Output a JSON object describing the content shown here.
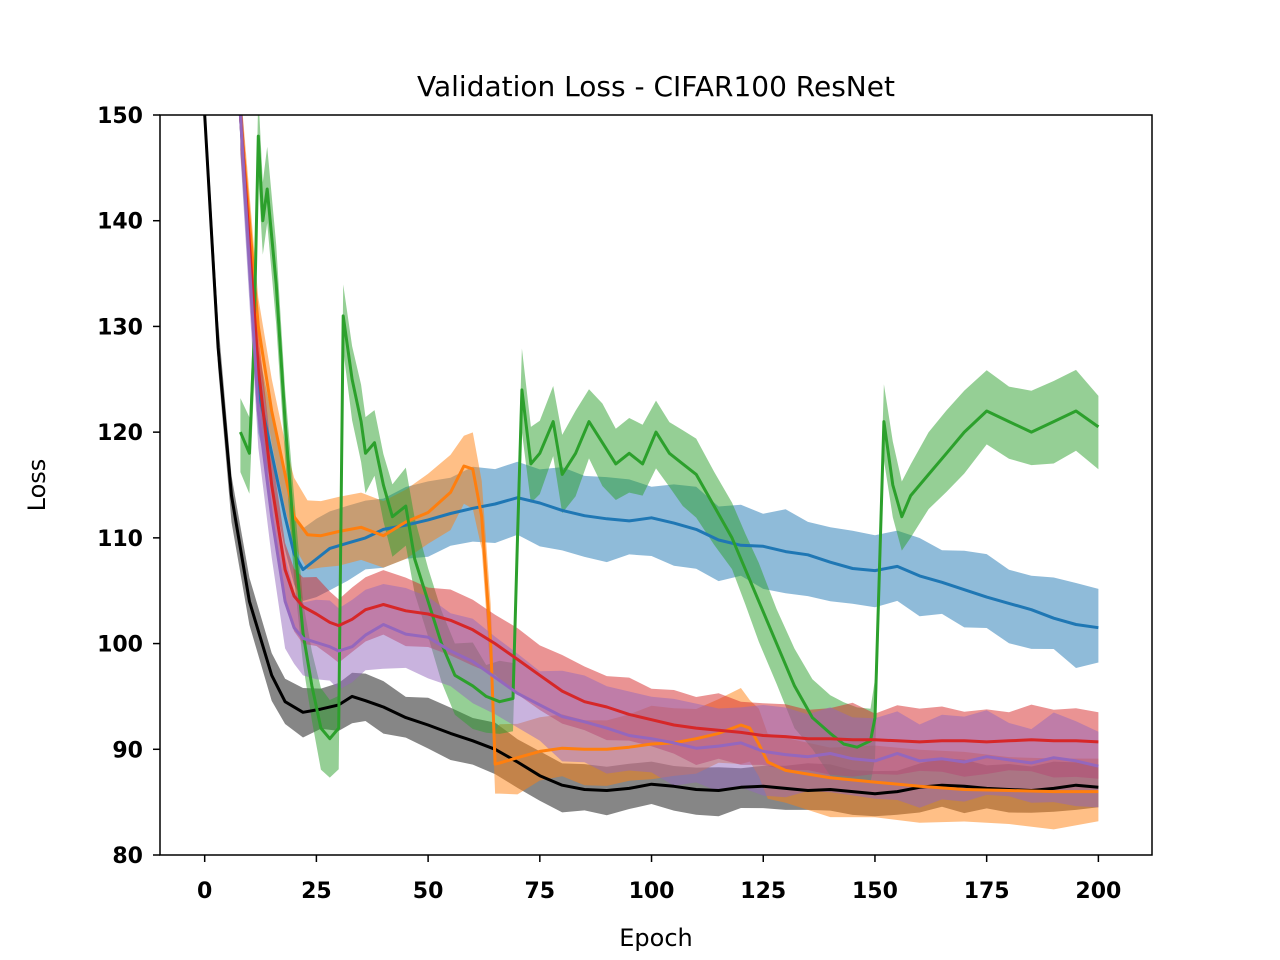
{
  "chart_data": {
    "type": "line",
    "title": "Validation Loss - CIFAR100 ResNet",
    "xlabel": "Epoch",
    "ylabel": "Loss",
    "xlim": [
      -10,
      212
    ],
    "ylim": [
      80,
      150
    ],
    "xticks": [
      0,
      25,
      50,
      75,
      100,
      125,
      150,
      175,
      200
    ],
    "yticks": [
      80,
      90,
      100,
      110,
      120,
      130,
      140,
      150
    ],
    "grid": false,
    "legend": "none",
    "series": [
      {
        "color": "#7f7f7f",
        "line_color": "#000000",
        "band": 2.2,
        "x": [
          0,
          3,
          6,
          10,
          15,
          18,
          22,
          26,
          30,
          33,
          36,
          40,
          45,
          50,
          55,
          60,
          65,
          70,
          75,
          80,
          85,
          90,
          95,
          100,
          105,
          110,
          115,
          120,
          125,
          130,
          135,
          140,
          145,
          150,
          155,
          160,
          165,
          170,
          175,
          180,
          185,
          190,
          195,
          200
        ],
        "y": [
          150,
          128,
          114,
          104,
          97,
          94.5,
          93.5,
          93.8,
          94.2,
          95,
          94.6,
          94,
          93,
          92.3,
          91.5,
          90.8,
          90,
          88.8,
          87.5,
          86.6,
          86.2,
          86.1,
          86.3,
          86.7,
          86.5,
          86.2,
          86.1,
          86.4,
          86.5,
          86.3,
          86.1,
          86.2,
          86.0,
          85.8,
          86.0,
          86.4,
          86.6,
          86.5,
          86.3,
          86.2,
          86.1,
          86.3,
          86.6,
          86.4
        ]
      },
      {
        "color": "#1f77b4",
        "band": 3.5,
        "x": [
          8,
          12,
          15,
          18,
          20,
          22,
          25,
          28,
          32,
          36,
          40,
          45,
          50,
          55,
          60,
          65,
          70,
          75,
          80,
          85,
          90,
          95,
          100,
          105,
          110,
          115,
          120,
          125,
          130,
          135,
          140,
          145,
          150,
          155,
          160,
          165,
          170,
          175,
          180,
          185,
          190,
          195,
          200
        ],
        "y": [
          150,
          124,
          118,
          112,
          108.5,
          107,
          108,
          109,
          109.5,
          110,
          110.8,
          111.2,
          111.7,
          112.3,
          112.8,
          113.2,
          113.8,
          113.3,
          112.6,
          112.1,
          111.8,
          111.6,
          111.9,
          111.4,
          110.8,
          109.8,
          109.3,
          109.2,
          108.7,
          108.4,
          107.7,
          107.1,
          106.9,
          107.3,
          106.4,
          105.8,
          105.1,
          104.4,
          103.8,
          103.2,
          102.4,
          101.8,
          101.5
        ]
      },
      {
        "color": "#ff7f0e",
        "band": 3.2,
        "x": [
          8,
          12,
          15,
          18,
          20,
          23,
          26,
          30,
          35,
          40,
          45,
          50,
          55,
          58,
          60,
          62,
          64,
          65,
          66,
          70,
          75,
          80,
          85,
          90,
          95,
          100,
          105,
          110,
          115,
          120,
          122,
          124,
          126,
          130,
          140,
          150,
          160,
          170,
          180,
          190,
          200
        ],
        "y": [
          150,
          130,
          122,
          116,
          112,
          110.3,
          110.2,
          110.6,
          111,
          110.2,
          111.5,
          112.4,
          114.3,
          116.8,
          116.5,
          112,
          100,
          88.6,
          88.7,
          89.2,
          89.8,
          90.1,
          90.0,
          90.0,
          90.2,
          90.5,
          90.6,
          91.0,
          91.5,
          92.3,
          92.0,
          90.5,
          88.8,
          88.0,
          87.3,
          86.9,
          86.5,
          86.2,
          86.1,
          86.0,
          86.0
        ]
      },
      {
        "color": "#2ca02c",
        "band": 3.5,
        "x": [
          8,
          10,
          11,
          12,
          13,
          14,
          16,
          18,
          20,
          22,
          24,
          26,
          28,
          30,
          31,
          33,
          35,
          36,
          38,
          40,
          42,
          45,
          47,
          50,
          53,
          56,
          60,
          63,
          66,
          69,
          70,
          71,
          73,
          75,
          78,
          80,
          83,
          86,
          89,
          92,
          95,
          98,
          101,
          104,
          107,
          110,
          114,
          118,
          121,
          124,
          128,
          132,
          136,
          140,
          143,
          146,
          149,
          150,
          152,
          154,
          156,
          158,
          162,
          166,
          170,
          175,
          180,
          185,
          190,
          195,
          200
        ],
        "y": [
          120,
          118,
          128,
          148,
          140,
          143,
          134,
          121,
          110,
          101,
          96,
          92,
          91,
          92,
          131,
          125,
          121,
          118,
          119,
          115,
          112,
          113,
          108,
          104,
          100,
          97,
          96,
          95,
          94.5,
          94.8,
          110,
          124,
          117,
          118,
          121,
          116,
          118,
          121,
          119,
          117,
          118,
          117,
          120,
          118,
          117,
          116,
          113,
          110,
          107,
          104,
          100,
          96,
          93,
          91.5,
          90.5,
          90.2,
          90.8,
          93,
          121,
          115,
          112,
          114,
          116,
          118,
          120,
          122,
          121,
          120,
          121,
          122,
          120.5
        ]
      },
      {
        "color": "#d62728",
        "band": 3.0,
        "x": [
          8,
          12,
          15,
          18,
          20,
          22,
          25,
          28,
          30,
          33,
          36,
          40,
          45,
          50,
          55,
          60,
          65,
          70,
          75,
          80,
          85,
          90,
          95,
          100,
          105,
          110,
          115,
          120,
          125,
          130,
          135,
          140,
          145,
          150,
          155,
          160,
          165,
          170,
          175,
          180,
          185,
          190,
          195,
          200
        ],
        "y": [
          150,
          126,
          115,
          107,
          104.5,
          103.5,
          102.8,
          102,
          101.7,
          102.3,
          103.2,
          103.7,
          103.1,
          102.8,
          102.2,
          101.3,
          100,
          98.5,
          97,
          95.5,
          94.5,
          94,
          93.3,
          92.8,
          92.3,
          92,
          91.8,
          91.6,
          91.3,
          91.2,
          91,
          91,
          90.9,
          90.9,
          90.8,
          90.7,
          90.8,
          90.8,
          90.7,
          90.8,
          90.9,
          90.8,
          90.8,
          90.7
        ]
      },
      {
        "color": "#9467bd",
        "band": 3.8,
        "x": [
          8,
          12,
          15,
          18,
          20,
          22,
          25,
          28,
          30,
          33,
          36,
          40,
          45,
          50,
          55,
          60,
          65,
          70,
          75,
          80,
          85,
          90,
          95,
          100,
          105,
          110,
          115,
          120,
          125,
          130,
          135,
          140,
          145,
          150,
          155,
          160,
          165,
          170,
          175,
          180,
          185,
          190,
          195,
          200
        ],
        "y": [
          150,
          122,
          112,
          104,
          101.5,
          100.5,
          100.1,
          99.7,
          99.3,
          99.7,
          100.8,
          101.8,
          100.9,
          100.6,
          99.3,
          98.3,
          96.8,
          95.3,
          94.2,
          93.1,
          92.6,
          92.0,
          91.3,
          91.0,
          90.6,
          90.1,
          90.3,
          90.6,
          89.8,
          89.5,
          89.3,
          89.6,
          89.1,
          88.9,
          89.6,
          88.9,
          89.1,
          88.8,
          89.3,
          89.0,
          88.7,
          89.2,
          88.9,
          88.4
        ]
      }
    ]
  }
}
